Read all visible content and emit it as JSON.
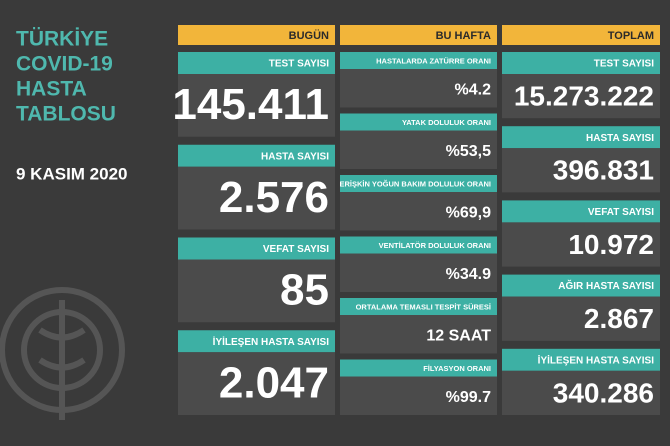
{
  "header": {
    "title": [
      "TÜRKİYE",
      "COVID-19",
      "HASTA",
      "TABLOSU"
    ],
    "date": "9 KASIM 2020"
  },
  "columns": [
    {
      "heading": "BUGÜN",
      "items": [
        {
          "label": "TEST SAYISI",
          "value": "145.411"
        },
        {
          "label": "HASTA SAYISI",
          "value": "2.576"
        },
        {
          "label": "VEFAT SAYISI",
          "value": "85"
        },
        {
          "label": "İYİLEŞEN HASTA SAYISI",
          "value": "2.047"
        }
      ]
    },
    {
      "heading": "BU HAFTA",
      "items": [
        {
          "label": "HASTALARDA ZATÜRRE ORANI",
          "value": "%4.2"
        },
        {
          "label": "YATAK DOLULUK ORANI",
          "value": "%53,5"
        },
        {
          "label": "ERİŞKİN YOĞUN BAKIM DOLULUK ORANI",
          "value": "%69,9"
        },
        {
          "label": "VENTİLATÖR DOLULUK ORANI",
          "value": "%34.9"
        },
        {
          "label": "ORTALAMA TEMASLI TESPİT SÜRESİ",
          "value": "12 SAAT"
        },
        {
          "label": "FİLYASYON ORANI",
          "value": "%99.7"
        }
      ]
    },
    {
      "heading": "TOPLAM",
      "items": [
        {
          "label": "TEST SAYISI",
          "value": "15.273.222"
        },
        {
          "label": "HASTA SAYISI",
          "value": "396.831"
        },
        {
          "label": "VEFAT SAYISI",
          "value": "10.972"
        },
        {
          "label": "AĞIR HASTA SAYISI",
          "value": "2.867"
        },
        {
          "label": "İYİLEŞEN HASTA SAYISI",
          "value": "340.286"
        }
      ]
    }
  ]
}
